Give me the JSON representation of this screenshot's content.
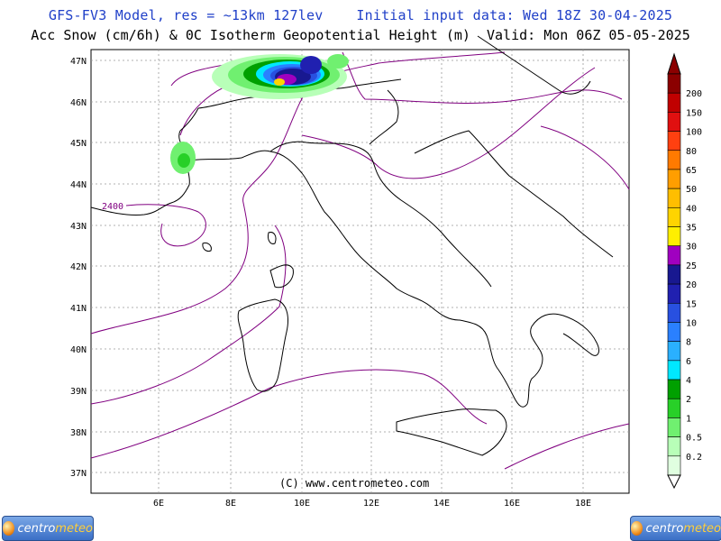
{
  "header": {
    "line1": "GFS-FV3 Model, res = ~13km 127lev    Initial input data: Wed 18Z 30-04-2025",
    "line2": "Acc Snow (cm/6h) & 0C Isotherm Geopotential Height (m)  Valid: Mon 06Z 05-05-2025"
  },
  "map": {
    "lat_labels": [
      "47N",
      "46N",
      "45N",
      "44N",
      "43N",
      "42N",
      "41N",
      "40N",
      "39N",
      "38N",
      "37N"
    ],
    "lon_labels": [
      "6E",
      "8E",
      "10E",
      "12E",
      "14E",
      "16E",
      "18E"
    ],
    "contour_label": "2400",
    "copyright": "(C)  www.centrometeo.com"
  },
  "legend": {
    "levels": [
      "200",
      "150",
      "100",
      "80",
      "65",
      "50",
      "40",
      "35",
      "30",
      "25",
      "20",
      "15",
      "10",
      "8",
      "6",
      "4",
      "2",
      "1",
      "0.5",
      "0.2"
    ],
    "colors": [
      "#8b0000",
      "#c00000",
      "#e01010",
      "#ff4010",
      "#ff7a00",
      "#ff9e00",
      "#ffbe00",
      "#ffd400",
      "#ffef00",
      "#a000c0",
      "#181890",
      "#2020b0",
      "#2850e0",
      "#2a80ff",
      "#2ab0ff",
      "#00e8ff",
      "#00a000",
      "#28d028",
      "#70f070",
      "#b8ffb8",
      "#e0ffe0"
    ]
  },
  "logos": {
    "left": {
      "name": "centro",
      "accent": "meteo"
    },
    "right": {
      "name": "centro",
      "accent": "meteo"
    }
  }
}
